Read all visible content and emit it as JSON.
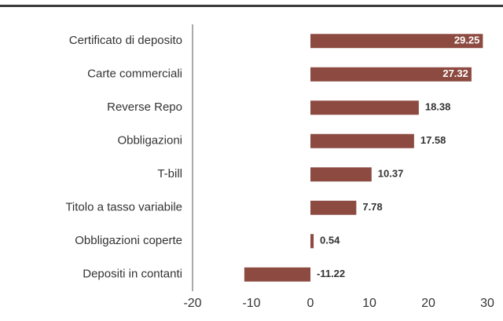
{
  "chart_data": {
    "type": "bar",
    "orientation": "horizontal",
    "categories": [
      "Certificato di deposito",
      "Carte commerciali",
      "Reverse Repo",
      "Obbligazioni",
      "T-bill",
      "Titolo a tasso variabile",
      "Obbligazioni coperte",
      "Depositi in contanti"
    ],
    "values": [
      29.25,
      27.32,
      18.38,
      17.58,
      10.37,
      7.78,
      0.54,
      -11.22
    ],
    "color": "#8c4a40",
    "xlim": [
      -20,
      30
    ],
    "xticks": [
      -20,
      -10,
      0,
      10,
      20,
      30
    ],
    "grid": false
  }
}
